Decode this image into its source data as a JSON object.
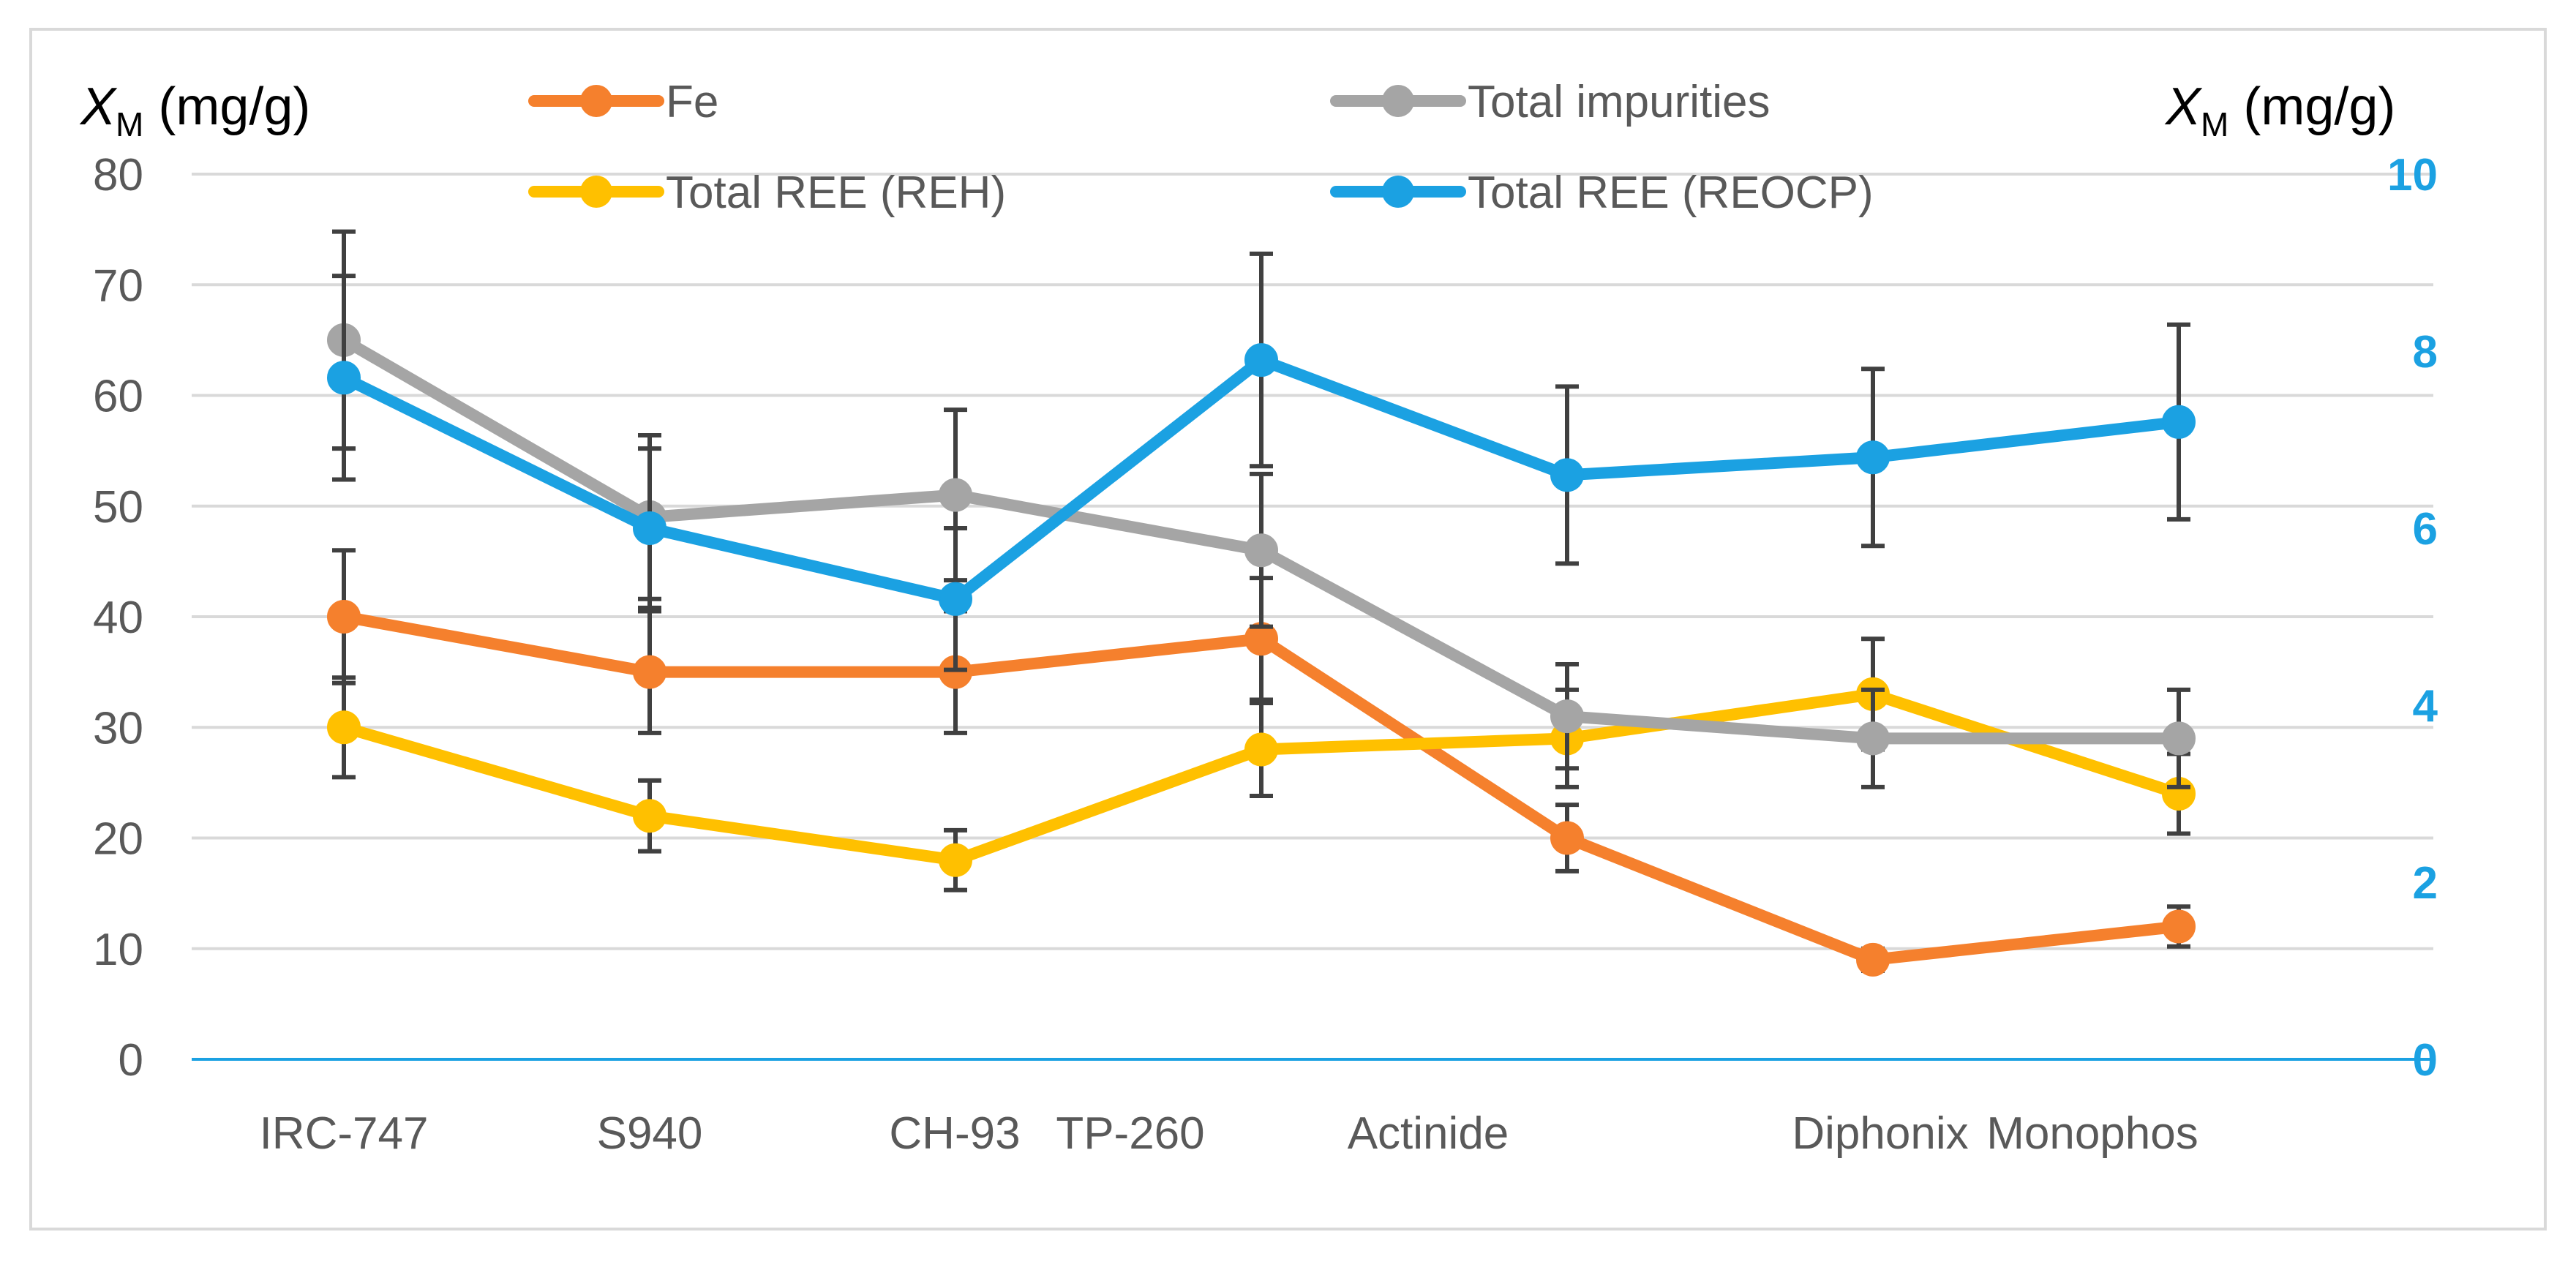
{
  "chart_data": {
    "type": "line",
    "title": "",
    "xlabel": "",
    "y_left_label": {
      "symbol": "X",
      "subscript": "M",
      "unit": "(mg/g)"
    },
    "y_right_label": {
      "symbol": "X",
      "subscript": "M",
      "unit": "(mg/g)"
    },
    "categories": [
      "IRC-747",
      "S940",
      "CH-93",
      "TP-260",
      "Actinide",
      "Diphonix",
      "Monophos"
    ],
    "category_positions": [
      0,
      1,
      2,
      3,
      4,
      5,
      6
    ],
    "y_left": {
      "min": 0,
      "max": 80,
      "ticks": [
        "0",
        "10",
        "20",
        "30",
        "40",
        "50",
        "60",
        "70",
        "80"
      ]
    },
    "y_right": {
      "min": 0,
      "max": 10,
      "ticks": [
        "0",
        "2",
        "4",
        "6",
        "8",
        "10"
      ]
    },
    "grid": true,
    "legend_position": "top",
    "series": [
      {
        "name": "Fe",
        "color": "#F5802D",
        "axis": "left",
        "x": [
          0,
          1,
          2,
          3,
          4,
          5,
          6
        ],
        "values": [
          40,
          35,
          35,
          38,
          20,
          9,
          12
        ],
        "errors": [
          6,
          5.5,
          5.5,
          5.5,
          3,
          1,
          1.8
        ]
      },
      {
        "name": "Total REE (REH)",
        "color": "#FFC000",
        "axis": "left",
        "x": [
          0,
          1,
          2,
          3,
          4,
          5,
          6
        ],
        "values": [
          30,
          22,
          18,
          28,
          29,
          33,
          24
        ],
        "errors": [
          4.5,
          3.2,
          2.7,
          4.2,
          4.4,
          5,
          3.6
        ]
      },
      {
        "name": "Total impurities",
        "color": "#A5A5A5",
        "axis": "left",
        "x": [
          0,
          1,
          2,
          3,
          4,
          5,
          6
        ],
        "values": [
          65,
          49,
          51,
          46,
          31,
          29,
          29
        ],
        "errors": [
          9.8,
          7.4,
          7.7,
          6.9,
          4.7,
          4.4,
          4.4
        ]
      },
      {
        "name": "Total REE (REOCP)",
        "color": "#1BA1E2",
        "axis": "right",
        "x": [
          0,
          1,
          2,
          3,
          4,
          5,
          6
        ],
        "values": [
          7.7,
          6.0,
          5.2,
          7.9,
          6.6,
          6.8,
          7.2
        ],
        "errors": [
          1.15,
          0.9,
          0.8,
          1.2,
          1.0,
          1.0,
          1.1
        ]
      }
    ]
  },
  "colors": {
    "grid": "#D9D9D9",
    "axis_text": "#595959",
    "right_axis_text": "#1BA1E2",
    "error_bar": "#404040",
    "frame": "#D9D9D9",
    "baseline": "#1BA1E2"
  }
}
